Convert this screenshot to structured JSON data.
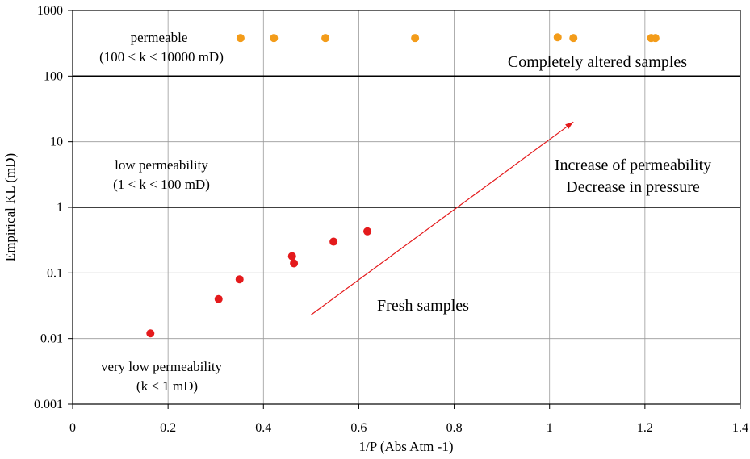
{
  "chart_data": {
    "type": "scatter",
    "xlabel": "1/P (Abs Atm -1)",
    "ylabel": "Empirical KL  (mD)",
    "xlim": [
      0,
      1.4
    ],
    "ylim": [
      0.001,
      1000
    ],
    "yscale": "log",
    "grid": true,
    "x_ticks": [
      0,
      0.2,
      0.4,
      0.6,
      0.8,
      1,
      1.2,
      1.4
    ],
    "x_tick_labels": [
      "0",
      "0.2",
      "0.4",
      "0.6",
      "0.8",
      "1",
      "1.2",
      "1.4"
    ],
    "y_ticks": [
      0.001,
      0.01,
      0.1,
      1,
      10,
      100,
      1000
    ],
    "y_tick_labels": [
      "0.001",
      "0.01",
      "0.1",
      "1",
      "10",
      "100",
      "1000"
    ],
    "boundary_lines_y": [
      1,
      100
    ],
    "series": [
      {
        "color": "#e41a1c",
        "points": [
          {
            "x": 0.163,
            "y": 0.012
          },
          {
            "x": 0.306,
            "y": 0.04
          },
          {
            "x": 0.35,
            "y": 0.08
          },
          {
            "x": 0.46,
            "y": 0.18
          },
          {
            "x": 0.464,
            "y": 0.14
          },
          {
            "x": 0.547,
            "y": 0.3
          },
          {
            "x": 0.618,
            "y": 0.43
          }
        ]
      },
      {
        "color": "#f39c1a",
        "points": [
          {
            "x": 0.352,
            "y": 380
          },
          {
            "x": 0.422,
            "y": 380
          },
          {
            "x": 0.53,
            "y": 380
          },
          {
            "x": 0.718,
            "y": 380
          },
          {
            "x": 1.017,
            "y": 390
          },
          {
            "x": 1.05,
            "y": 380
          },
          {
            "x": 1.213,
            "y": 380
          },
          {
            "x": 1.222,
            "y": 380
          }
        ]
      }
    ],
    "arrow": {
      "from": {
        "x": 0.5,
        "y": 0.023
      },
      "to": {
        "x": 1.05,
        "y": 20
      },
      "color": "#e41a1c"
    },
    "annotations": {
      "permeable_1": "permeable",
      "permeable_2": "(100 < k < 10000 mD)",
      "low_1": "low permeability",
      "low_2": "(1 < k < 100 mD)",
      "very_low_1": "very low permeability",
      "very_low_2": "(k < 1 mD)",
      "altered": "Completely altered samples",
      "increase_1": "Increase of permeability",
      "increase_2": "Decrease in pressure",
      "fresh": "Fresh samples"
    }
  }
}
